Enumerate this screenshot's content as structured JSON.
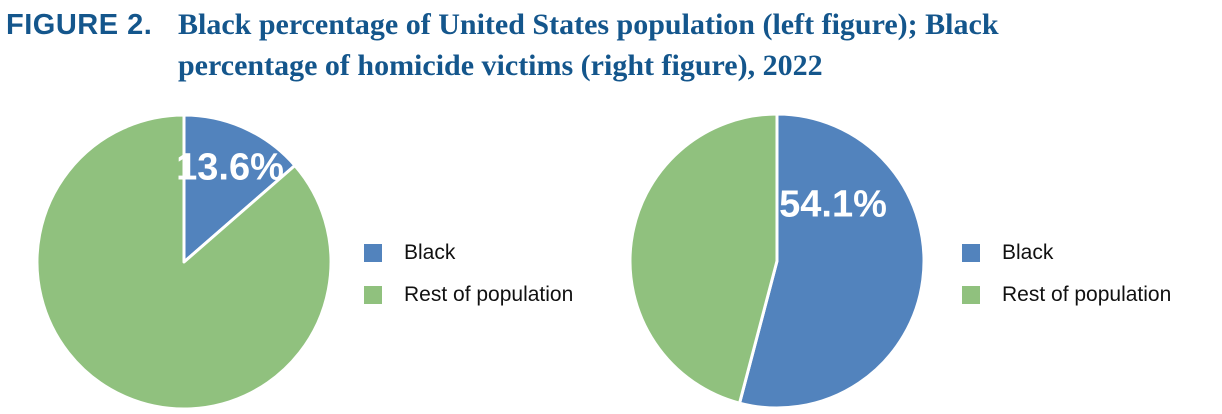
{
  "title": {
    "label": "FIGURE 2.",
    "line1": "Black percentage of United States population (left figure); Black",
    "line2": "percentage of homicide victims (right figure), 2022",
    "color": "#14568C"
  },
  "chart_data": [
    {
      "type": "pie",
      "title": "Black percentage of United States population, 2022",
      "labels": [
        "Black",
        "Rest of population"
      ],
      "values": [
        13.6,
        86.4
      ],
      "colors": [
        "#5283BD",
        "#90C17E"
      ],
      "data_label": "13.6%",
      "data_label_color": "#FFFFFF",
      "start_angle": 0,
      "direction": "clockwise",
      "legend_position": "right",
      "slice_border_color": "#FFFFFF"
    },
    {
      "type": "pie",
      "title": "Black percentage of homicide victims, 2022",
      "labels": [
        "Black",
        "Rest of population"
      ],
      "values": [
        54.1,
        45.9
      ],
      "colors": [
        "#5283BD",
        "#90C17E"
      ],
      "data_label": "54.1%",
      "data_label_color": "#FFFFFF",
      "start_angle": 0,
      "direction": "clockwise",
      "legend_position": "right",
      "slice_border_color": "#FFFFFF"
    }
  ]
}
